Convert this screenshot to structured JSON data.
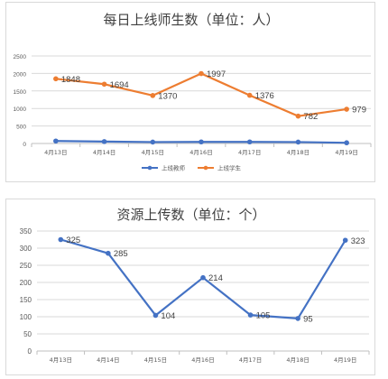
{
  "chart_data": [
    {
      "type": "line",
      "title": "每日上线师生数（单位：人）",
      "categories": [
        "4月13日",
        "4月14日",
        "4月15日",
        "4月16日",
        "4月17日",
        "4月18日",
        "4月19日"
      ],
      "ylim": [
        0,
        2500
      ],
      "yticks": [
        0,
        500,
        1000,
        1500,
        2000,
        2500
      ],
      "grid": true,
      "legend_position": "bottom",
      "series": [
        {
          "name": "上线教师",
          "color": "#4472c4",
          "values": [
            70,
            55,
            40,
            45,
            45,
            40,
            20
          ],
          "labels": false
        },
        {
          "name": "上线学生",
          "color": "#ed7d31",
          "values": [
            1848,
            1694,
            1370,
            1997,
            1376,
            782,
            979
          ],
          "labels": true
        }
      ]
    },
    {
      "type": "line",
      "title": "资源上传数（单位：个）",
      "categories": [
        "4月13日",
        "4月14日",
        "4月15日",
        "4月16日",
        "4月17日",
        "4月18日",
        "4月19日"
      ],
      "ylim": [
        0,
        350
      ],
      "yticks": [
        0,
        50,
        100,
        150,
        200,
        250,
        300,
        350
      ],
      "grid": true,
      "legend_position": "none",
      "series": [
        {
          "color": "#4472c4",
          "values": [
            325,
            285,
            104,
            214,
            105,
            95,
            323
          ],
          "labels": true
        }
      ]
    }
  ]
}
